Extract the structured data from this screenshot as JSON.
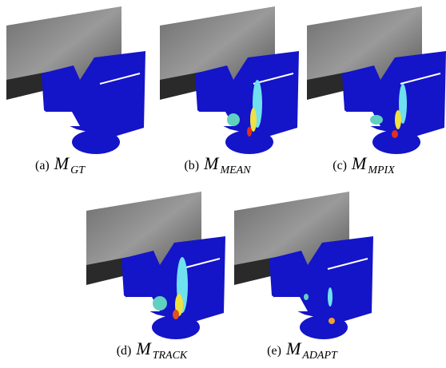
{
  "panels": [
    {
      "label": "(a)",
      "symbol": "M",
      "subscript": "GT"
    },
    {
      "label": "(b)",
      "symbol": "M",
      "subscript": "MEAN"
    },
    {
      "label": "(c)",
      "symbol": "M",
      "subscript": "MPIX"
    },
    {
      "label": "(d)",
      "symbol": "M",
      "subscript": "TRACK"
    },
    {
      "label": "(e)",
      "symbol": "M",
      "subscript": "ADAPT"
    }
  ]
}
